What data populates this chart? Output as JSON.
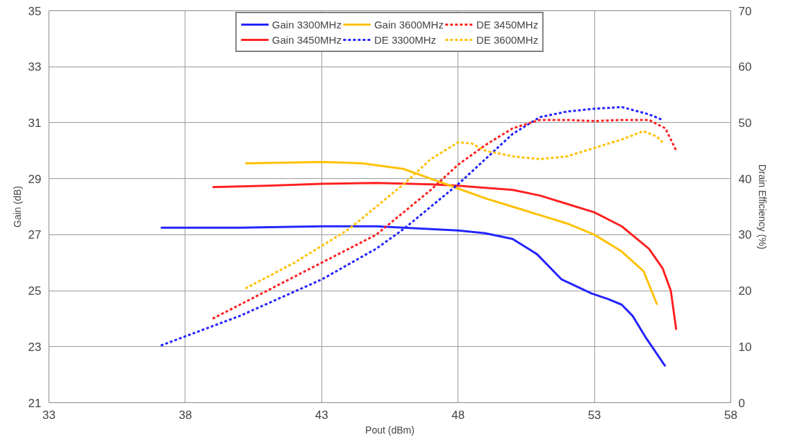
{
  "chart_data": {
    "type": "line",
    "xlabel": "Pout (dBm)",
    "ylabel": "Gain (dB)",
    "y2label": "Drain Efficiency (%)",
    "xlim": [
      33,
      58
    ],
    "xticks": [
      33,
      38,
      43,
      48,
      53,
      58
    ],
    "ylim": [
      21,
      35
    ],
    "yticks": [
      21,
      23,
      25,
      27,
      29,
      31,
      33,
      35
    ],
    "y2lim": [
      0,
      70
    ],
    "y2ticks": [
      0,
      10,
      20,
      30,
      40,
      50,
      60,
      70
    ],
    "grid": true,
    "legend": "top",
    "series": [
      {
        "name": "Gain 3300MHz",
        "color": "#2323ff",
        "line_style": "solid",
        "x": [
          37.1,
          40,
          43,
          45,
          47,
          48,
          49,
          50,
          50.9,
          51.8,
          52.9,
          53.5,
          54,
          54.4,
          54.9,
          55.6
        ],
        "values": [
          27.25,
          27.25,
          27.3,
          27.3,
          27.2,
          27.15,
          27.05,
          26.85,
          26.3,
          25.4,
          24.9,
          24.7,
          24.5,
          24.1,
          23.3,
          22.3
        ]
      },
      {
        "name": "Gain 3450MHz",
        "color": "#ff2020",
        "line_style": "solid",
        "x": [
          39,
          41,
          43,
          45,
          47,
          48,
          50,
          51,
          52,
          53,
          54,
          55,
          55.5,
          55.8,
          56
        ],
        "values": [
          28.7,
          28.75,
          28.82,
          28.85,
          28.8,
          28.75,
          28.6,
          28.4,
          28.1,
          27.8,
          27.3,
          26.5,
          25.8,
          25,
          23.6
        ]
      },
      {
        "name": "Gain 3600MHz",
        "color": "#ffc000",
        "line_style": "solid",
        "x": [
          40.2,
          43,
          44.5,
          46,
          47,
          48,
          49,
          50,
          51,
          52,
          53,
          54,
          54.8,
          55.3
        ],
        "values": [
          29.55,
          29.6,
          29.55,
          29.35,
          29,
          28.65,
          28.3,
          28,
          27.7,
          27.4,
          27,
          26.4,
          25.7,
          24.5
        ]
      },
      {
        "name": "DE 3300MHz",
        "color": "#2323ff",
        "line_style": "dashed",
        "axis": "y2",
        "x": [
          37.1,
          40,
          43,
          45,
          46,
          47,
          48,
          49,
          50,
          51,
          52,
          53,
          54,
          55,
          55.5
        ],
        "values": [
          10.2,
          15.5,
          22,
          27.5,
          31,
          35,
          39,
          43.5,
          48,
          51,
          52,
          52.5,
          52.8,
          51.5,
          50.5
        ]
      },
      {
        "name": "DE 3450MHz",
        "color": "#ff2020",
        "line_style": "dashed",
        "axis": "y2",
        "x": [
          39,
          41,
          43,
          45,
          46,
          47,
          48,
          49,
          50,
          51,
          52,
          53,
          54,
          55,
          55.6,
          56
        ],
        "values": [
          15,
          20,
          25,
          30,
          34,
          38,
          42.5,
          46,
          49,
          50.5,
          50.5,
          50.3,
          50.5,
          50.5,
          49,
          45
        ]
      },
      {
        "name": "DE 3600MHz",
        "color": "#ffc000",
        "line_style": "dashed",
        "axis": "y2",
        "x": [
          40.2,
          42,
          44,
          46,
          47,
          48,
          48.5,
          49,
          50,
          51,
          52,
          53,
          54,
          54.8,
          55.3,
          55.5
        ],
        "values": [
          20.4,
          25,
          31,
          39,
          43.5,
          46.5,
          46.3,
          45,
          44,
          43.5,
          44,
          45.5,
          47,
          48.5,
          47.5,
          46.5
        ]
      }
    ]
  }
}
